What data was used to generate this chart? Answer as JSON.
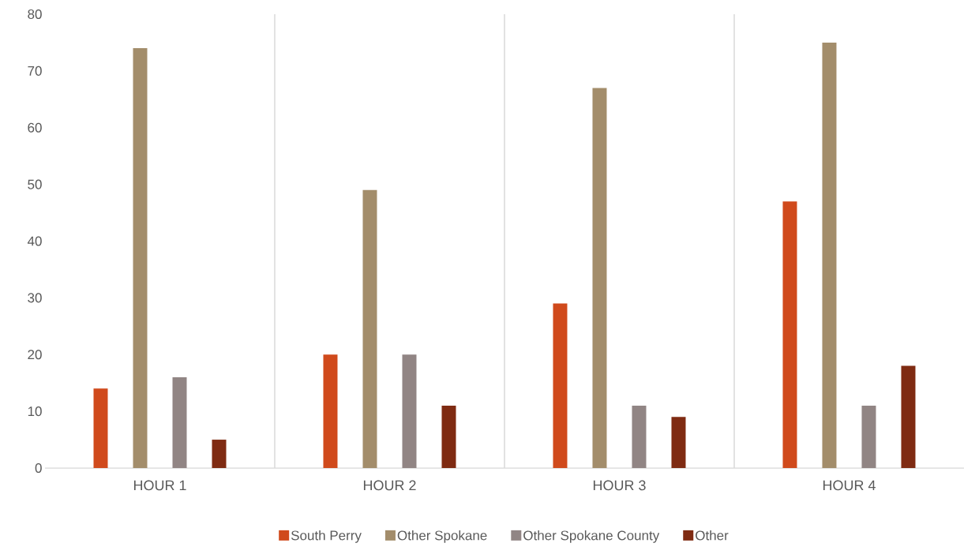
{
  "chart_data": {
    "type": "bar",
    "categories": [
      "HOUR 1",
      "HOUR 2",
      "HOUR 3",
      "HOUR 4"
    ],
    "series": [
      {
        "name": "South Perry",
        "color": "#d04a1c",
        "values": [
          14,
          20,
          29,
          47
        ]
      },
      {
        "name": "Other Spokane",
        "color": "#a38d6b",
        "values": [
          74,
          49,
          67,
          75
        ]
      },
      {
        "name": "Other Spokane County",
        "color": "#918584",
        "values": [
          16,
          20,
          11,
          11
        ]
      },
      {
        "name": "Other",
        "color": "#7f2b12",
        "values": [
          5,
          11,
          9,
          18
        ]
      }
    ],
    "ylim": [
      0,
      80
    ],
    "yticks": [
      0,
      10,
      20,
      30,
      40,
      50,
      60,
      70,
      80
    ],
    "grid": "x",
    "legend": "bottom"
  }
}
